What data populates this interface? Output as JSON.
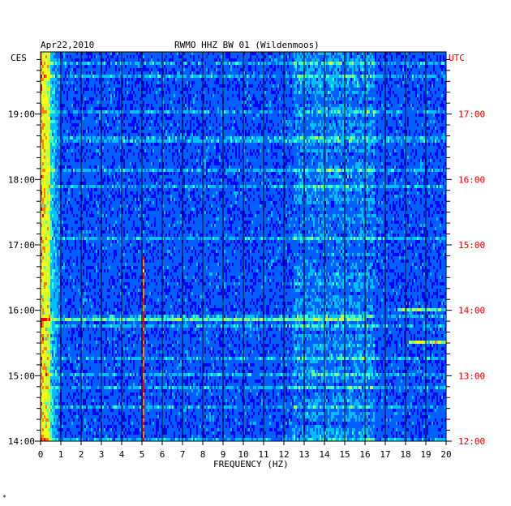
{
  "chart_data": {
    "type": "heatmap",
    "title": "RWMO HHZ BW 01 (Wildenmoos)",
    "date": "Apr22,2010",
    "xlabel": "FREQUENCY (HZ)",
    "x_ticks": [
      "0",
      "1",
      "2",
      "3",
      "4",
      "5",
      "6",
      "7",
      "8",
      "9",
      "10",
      "11",
      "12",
      "13",
      "14",
      "15",
      "16",
      "17",
      "18",
      "19",
      "20"
    ],
    "xlim": [
      0,
      20
    ],
    "left_axis": {
      "label": "CES",
      "ticks": [
        {
          "label": "14:00",
          "hour": 14
        },
        {
          "label": "15:00",
          "hour": 15
        },
        {
          "label": "16:00",
          "hour": 16
        },
        {
          "label": "17:00",
          "hour": 17
        },
        {
          "label": "18:00",
          "hour": 18
        },
        {
          "label": "19:00",
          "hour": 19
        }
      ]
    },
    "right_axis": {
      "label": "UTC",
      "ticks": [
        {
          "label": "12:00",
          "hour": 12
        },
        {
          "label": "13:00",
          "hour": 13
        },
        {
          "label": "14:00",
          "hour": 14
        },
        {
          "label": "15:00",
          "hour": 15
        },
        {
          "label": "16:00",
          "hour": 16
        },
        {
          "label": "17:00",
          "hour": 17
        }
      ]
    },
    "time_range_ces": [
      14.0,
      19.95
    ],
    "color_scale": [
      "#000080",
      "#0000ff",
      "#0060ff",
      "#00c0ff",
      "#40ffc0",
      "#c0ff40",
      "#ffff00",
      "#ff8000",
      "#ff0000"
    ],
    "features": [
      {
        "kind": "low-frequency energy",
        "x_range": [
          0,
          1.0
        ],
        "intensity": "high"
      },
      {
        "kind": "narrow line",
        "x": 5.1,
        "time_range_ces": [
          14.0,
          16.85
        ],
        "intensity": "high"
      },
      {
        "kind": "broadband energy",
        "x_range": [
          12.5,
          16.5
        ],
        "intensity": "medium"
      },
      {
        "kind": "event",
        "time_ces": 15.52,
        "x_range": [
          18.2,
          20
        ],
        "intensity": "high"
      },
      {
        "kind": "event",
        "time_ces": 16.02,
        "x_range": [
          17.6,
          20
        ],
        "intensity": "medium"
      },
      {
        "kind": "event",
        "time_ces": 15.87,
        "x_range": [
          0,
          16
        ],
        "intensity": "medium"
      }
    ],
    "grid": true,
    "colors": {
      "utc_axis": "#dd0000",
      "grid": "#000000",
      "background": "#ffffff"
    }
  },
  "footer_mark": "*"
}
